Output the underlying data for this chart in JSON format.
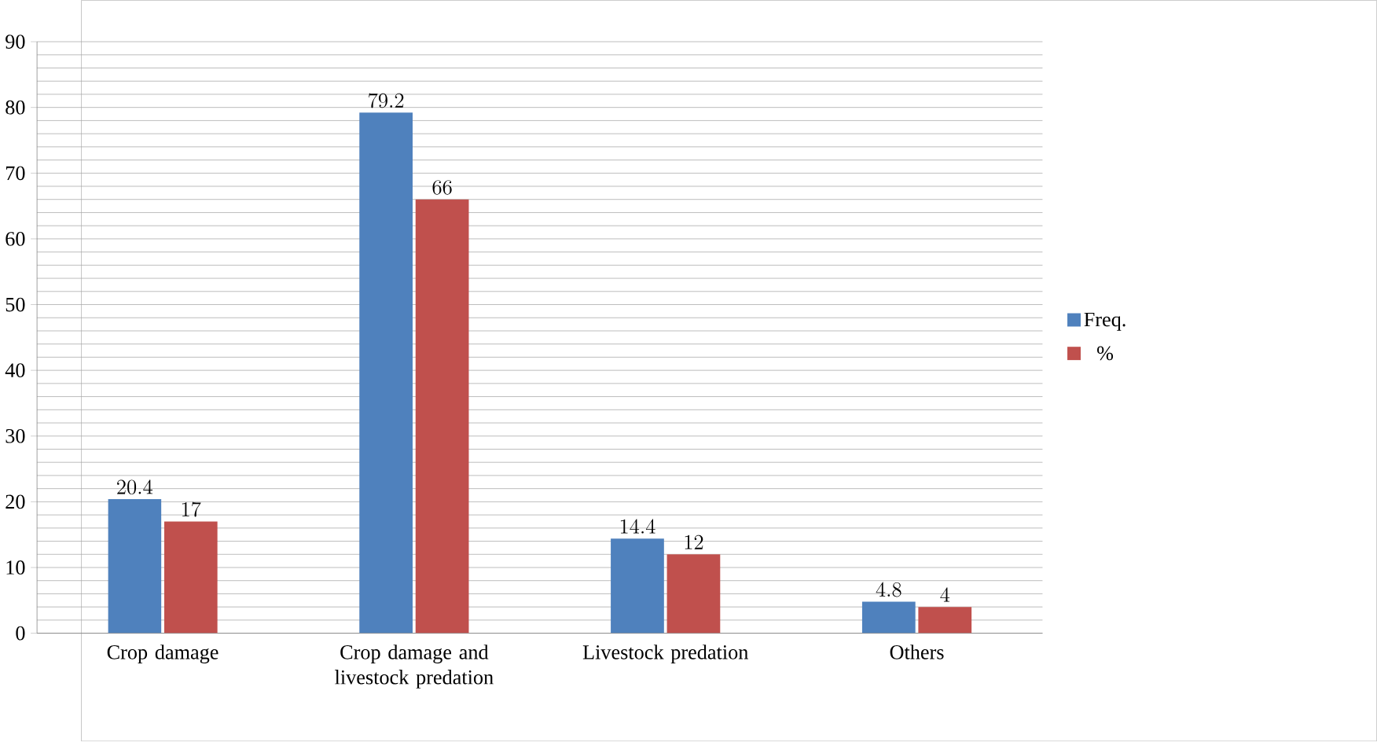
{
  "chart_data": {
    "type": "bar",
    "categories": [
      "Crop damage",
      "Crop damage and livestock predation",
      "Livestock predation",
      "Others"
    ],
    "series": [
      {
        "name": "Freq.",
        "color": "#4f81bd",
        "values": [
          20.4,
          79.2,
          14.4,
          4.8
        ]
      },
      {
        "name": "%",
        "color": "#c0504d",
        "values": [
          17,
          66,
          12,
          4
        ]
      }
    ],
    "ylim": [
      0,
      90
    ],
    "yticks": [
      0,
      10,
      20,
      30,
      40,
      50,
      60,
      70,
      80,
      90
    ],
    "grid": "y",
    "legend": "right",
    "data_labels": true
  }
}
